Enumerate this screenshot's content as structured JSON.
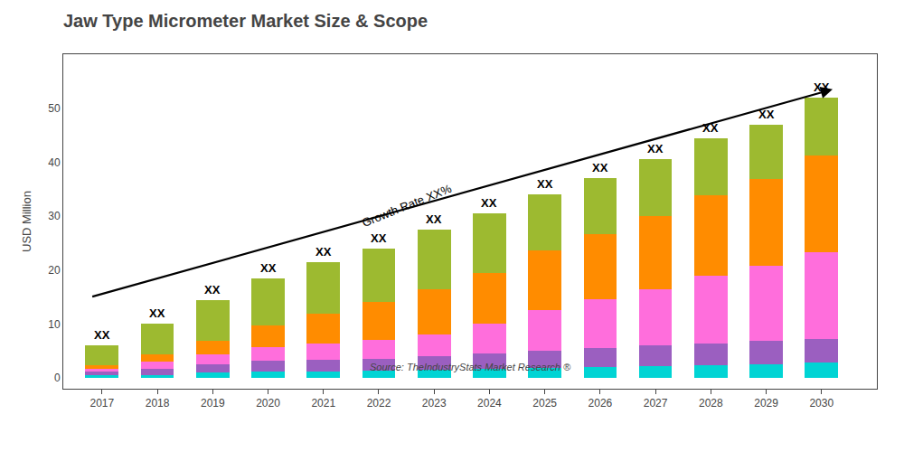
{
  "chart_data": {
    "type": "bar",
    "stacked": true,
    "title": "Jaw Type Micrometer Market Size & Scope",
    "ylabel": "USD Million",
    "source": "Source: TheIndustryStats Market Research ®",
    "x": [
      2017,
      2018,
      2019,
      2020,
      2021,
      2022,
      2023,
      2024,
      2025,
      2026,
      2027,
      2028,
      2029,
      2030
    ],
    "xlim": [
      2016.3,
      2031.0
    ],
    "xticks": [
      2017,
      2018,
      2019,
      2020,
      2021,
      2022,
      2023,
      2024,
      2025,
      2026,
      2027,
      2028,
      2029,
      2030
    ],
    "ylim": [
      -2,
      60
    ],
    "yticks": [
      0,
      10,
      20,
      30,
      40,
      50
    ],
    "grid": false,
    "series": [
      {
        "color": "#00d4d4",
        "values": [
          0.45,
          0.55,
          1.0,
          1.2,
          1.2,
          1.3,
          1.5,
          1.7,
          1.9,
          2.1,
          2.2,
          2.4,
          2.6,
          2.8
        ]
      },
      {
        "color": "#9b5fc0",
        "values": [
          0.7,
          1.2,
          1.5,
          2.0,
          2.2,
          2.3,
          2.5,
          2.8,
          3.2,
          3.5,
          3.8,
          4.0,
          4.2,
          4.5
        ]
      },
      {
        "color": "#ff6edc",
        "values": [
          0.5,
          1.2,
          1.8,
          2.5,
          3.0,
          3.5,
          4.0,
          5.5,
          7.5,
          9.0,
          10.5,
          12.5,
          14.0,
          16.0
        ]
      },
      {
        "color": "#ff8c00",
        "values": [
          0.7,
          1.5,
          2.5,
          4.0,
          5.5,
          7.0,
          8.5,
          9.5,
          11.0,
          12.0,
          13.5,
          15.0,
          16.0,
          18.0
        ]
      },
      {
        "color": "#9dba30",
        "values": [
          3.65,
          5.55,
          7.7,
          8.8,
          9.6,
          9.9,
          11.0,
          11.0,
          10.4,
          10.4,
          10.5,
          10.6,
          10.2,
          10.7
        ]
      }
    ],
    "annotations": [
      {
        "text": "XX",
        "x": 2017,
        "y": 6.0
      },
      {
        "text": "XX",
        "x": 2018,
        "y": 10.0
      },
      {
        "text": "XX",
        "x": 2019,
        "y": 14.5
      },
      {
        "text": "XX",
        "x": 2020,
        "y": 18.5
      },
      {
        "text": "XX",
        "x": 2021,
        "y": 21.5
      },
      {
        "text": "XX",
        "x": 2022,
        "y": 24.0
      },
      {
        "text": "XX",
        "x": 2023,
        "y": 27.5
      },
      {
        "text": "XX",
        "x": 2024,
        "y": 30.5
      },
      {
        "text": "XX",
        "x": 2025,
        "y": 34.0
      },
      {
        "text": "XX",
        "x": 2026,
        "y": 37.0
      },
      {
        "text": "XX",
        "x": 2027,
        "y": 40.5
      },
      {
        "text": "XX",
        "x": 2028,
        "y": 44.5
      },
      {
        "text": "XX",
        "x": 2029,
        "y": 47.0
      },
      {
        "text": "XX",
        "x": 2030,
        "y": 52.0
      },
      {
        "text": "Growth Rate XX%",
        "x": 2022.5,
        "y": 32.0
      }
    ],
    "arrow": {
      "x": [
        2016.8,
        2030.2
      ],
      "y": [
        15.0,
        53.5
      ]
    }
  }
}
